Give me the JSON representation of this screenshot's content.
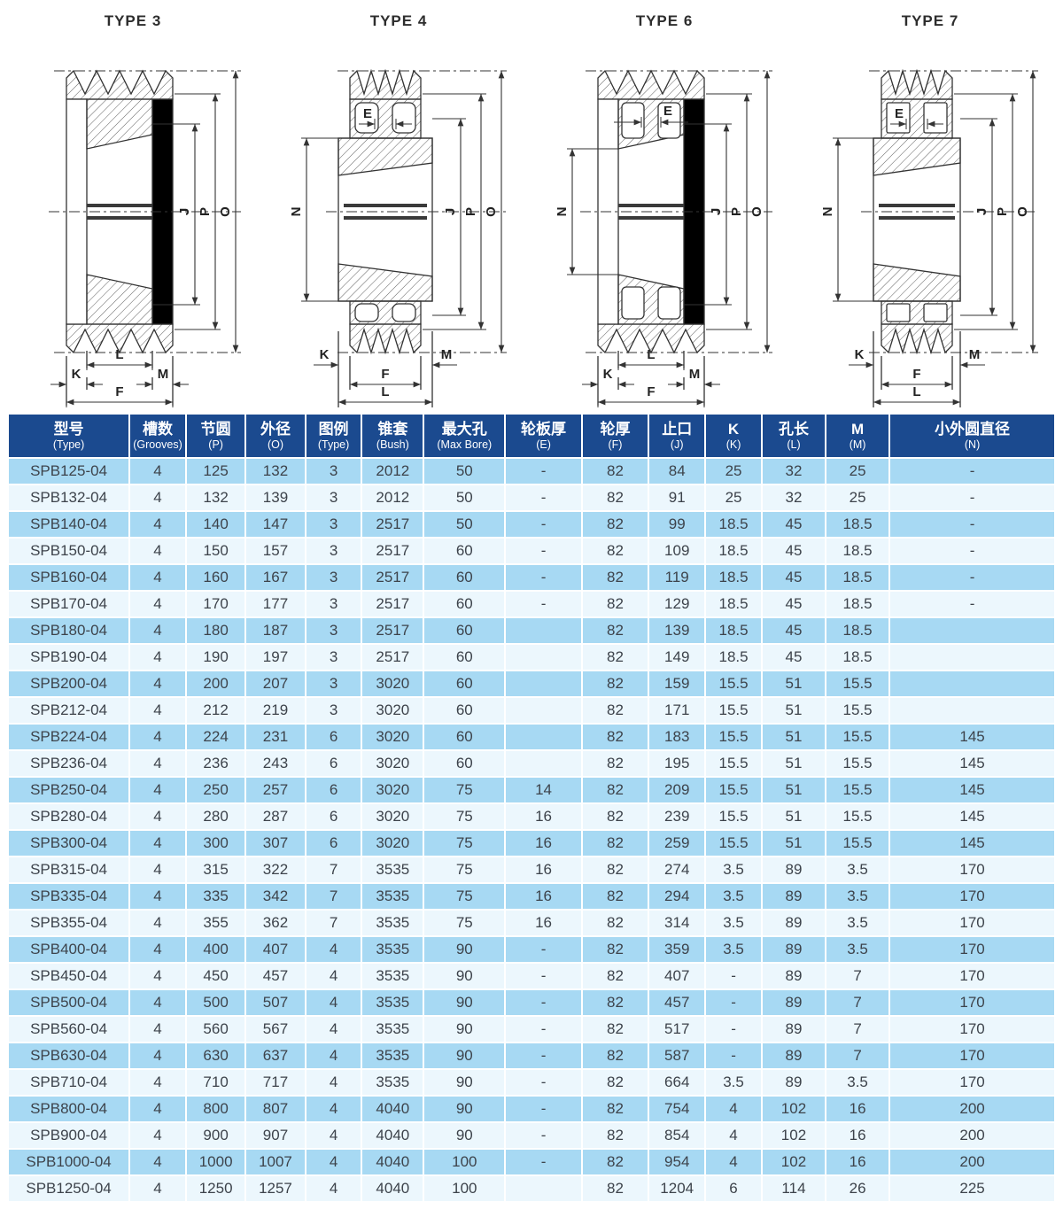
{
  "diagrams": [
    {
      "id": "type3",
      "title": "TYPE 3",
      "variant": "solid",
      "labels": {
        "j": "J",
        "p": "P",
        "o": "O",
        "k": "K",
        "l": "L",
        "m": "M",
        "f": "F"
      }
    },
    {
      "id": "type4",
      "title": "TYPE 4",
      "variant": "hub",
      "labels": {
        "e": "E",
        "n": "N",
        "j": "J",
        "p": "P",
        "o": "O",
        "k": "K",
        "l": "L",
        "m": "M",
        "f": "F"
      }
    },
    {
      "id": "type6",
      "title": "TYPE 6",
      "variant": "web",
      "labels": {
        "e": "E",
        "n": "N",
        "j": "J",
        "p": "P",
        "o": "O",
        "k": "K",
        "l": "L",
        "m": "M",
        "f": "F"
      }
    },
    {
      "id": "type7",
      "title": "TYPE 7",
      "variant": "hub",
      "labels": {
        "e": "E",
        "n": "N",
        "j": "J",
        "p": "P",
        "o": "O",
        "k": "K",
        "l": "L",
        "m": "M",
        "f": "F"
      }
    }
  ],
  "table": {
    "columns": [
      {
        "zh": "型号",
        "en": "(Type)"
      },
      {
        "zh": "槽数",
        "en": "(Grooves)"
      },
      {
        "zh": "节圆",
        "en": "(P)"
      },
      {
        "zh": "外径",
        "en": "(O)"
      },
      {
        "zh": "图例",
        "en": "(Type)"
      },
      {
        "zh": "锥套",
        "en": "(Bush)"
      },
      {
        "zh": "最大孔",
        "en": "(Max Bore)"
      },
      {
        "zh": "轮板厚",
        "en": "(E)"
      },
      {
        "zh": "轮厚",
        "en": "(F)"
      },
      {
        "zh": "止口",
        "en": "(J)"
      },
      {
        "zh": "K",
        "en": "(K)"
      },
      {
        "zh": "孔长",
        "en": "(L)"
      },
      {
        "zh": "M",
        "en": "(M)"
      },
      {
        "zh": "小外圆直径",
        "en": "(N)"
      }
    ],
    "rows": [
      [
        "SPB125-04",
        "4",
        "125",
        "132",
        "3",
        "2012",
        "50",
        "-",
        "82",
        "84",
        "25",
        "32",
        "25",
        "-"
      ],
      [
        "SPB132-04",
        "4",
        "132",
        "139",
        "3",
        "2012",
        "50",
        "-",
        "82",
        "91",
        "25",
        "32",
        "25",
        "-"
      ],
      [
        "SPB140-04",
        "4",
        "140",
        "147",
        "3",
        "2517",
        "50",
        "-",
        "82",
        "99",
        "18.5",
        "45",
        "18.5",
        "-"
      ],
      [
        "SPB150-04",
        "4",
        "150",
        "157",
        "3",
        "2517",
        "60",
        "-",
        "82",
        "109",
        "18.5",
        "45",
        "18.5",
        "-"
      ],
      [
        "SPB160-04",
        "4",
        "160",
        "167",
        "3",
        "2517",
        "60",
        "-",
        "82",
        "119",
        "18.5",
        "45",
        "18.5",
        "-"
      ],
      [
        "SPB170-04",
        "4",
        "170",
        "177",
        "3",
        "2517",
        "60",
        "-",
        "82",
        "129",
        "18.5",
        "45",
        "18.5",
        "-"
      ],
      [
        "SPB180-04",
        "4",
        "180",
        "187",
        "3",
        "2517",
        "60",
        "",
        "82",
        "139",
        "18.5",
        "45",
        "18.5",
        ""
      ],
      [
        "SPB190-04",
        "4",
        "190",
        "197",
        "3",
        "2517",
        "60",
        "",
        "82",
        "149",
        "18.5",
        "45",
        "18.5",
        ""
      ],
      [
        "SPB200-04",
        "4",
        "200",
        "207",
        "3",
        "3020",
        "60",
        "",
        "82",
        "159",
        "15.5",
        "51",
        "15.5",
        ""
      ],
      [
        "SPB212-04",
        "4",
        "212",
        "219",
        "3",
        "3020",
        "60",
        "",
        "82",
        "171",
        "15.5",
        "51",
        "15.5",
        ""
      ],
      [
        "SPB224-04",
        "4",
        "224",
        "231",
        "6",
        "3020",
        "60",
        "",
        "82",
        "183",
        "15.5",
        "51",
        "15.5",
        "145"
      ],
      [
        "SPB236-04",
        "4",
        "236",
        "243",
        "6",
        "3020",
        "60",
        "",
        "82",
        "195",
        "15.5",
        "51",
        "15.5",
        "145"
      ],
      [
        "SPB250-04",
        "4",
        "250",
        "257",
        "6",
        "3020",
        "75",
        "14",
        "82",
        "209",
        "15.5",
        "51",
        "15.5",
        "145"
      ],
      [
        "SPB280-04",
        "4",
        "280",
        "287",
        "6",
        "3020",
        "75",
        "16",
        "82",
        "239",
        "15.5",
        "51",
        "15.5",
        "145"
      ],
      [
        "SPB300-04",
        "4",
        "300",
        "307",
        "6",
        "3020",
        "75",
        "16",
        "82",
        "259",
        "15.5",
        "51",
        "15.5",
        "145"
      ],
      [
        "SPB315-04",
        "4",
        "315",
        "322",
        "7",
        "3535",
        "75",
        "16",
        "82",
        "274",
        "3.5",
        "89",
        "3.5",
        "170"
      ],
      [
        "SPB335-04",
        "4",
        "335",
        "342",
        "7",
        "3535",
        "75",
        "16",
        "82",
        "294",
        "3.5",
        "89",
        "3.5",
        "170"
      ],
      [
        "SPB355-04",
        "4",
        "355",
        "362",
        "7",
        "3535",
        "75",
        "16",
        "82",
        "314",
        "3.5",
        "89",
        "3.5",
        "170"
      ],
      [
        "SPB400-04",
        "4",
        "400",
        "407",
        "4",
        "3535",
        "90",
        "-",
        "82",
        "359",
        "3.5",
        "89",
        "3.5",
        "170"
      ],
      [
        "SPB450-04",
        "4",
        "450",
        "457",
        "4",
        "3535",
        "90",
        "-",
        "82",
        "407",
        "-",
        "89",
        "7",
        "170"
      ],
      [
        "SPB500-04",
        "4",
        "500",
        "507",
        "4",
        "3535",
        "90",
        "-",
        "82",
        "457",
        "-",
        "89",
        "7",
        "170"
      ],
      [
        "SPB560-04",
        "4",
        "560",
        "567",
        "4",
        "3535",
        "90",
        "-",
        "82",
        "517",
        "-",
        "89",
        "7",
        "170"
      ],
      [
        "SPB630-04",
        "4",
        "630",
        "637",
        "4",
        "3535",
        "90",
        "-",
        "82",
        "587",
        "-",
        "89",
        "7",
        "170"
      ],
      [
        "SPB710-04",
        "4",
        "710",
        "717",
        "4",
        "3535",
        "90",
        "-",
        "82",
        "664",
        "3.5",
        "89",
        "3.5",
        "170"
      ],
      [
        "SPB800-04",
        "4",
        "800",
        "807",
        "4",
        "4040",
        "90",
        "-",
        "82",
        "754",
        "4",
        "102",
        "16",
        "200"
      ],
      [
        "SPB900-04",
        "4",
        "900",
        "907",
        "4",
        "4040",
        "90",
        "-",
        "82",
        "854",
        "4",
        "102",
        "16",
        "200"
      ],
      [
        "SPB1000-04",
        "4",
        "1000",
        "1007",
        "4",
        "4040",
        "100",
        "-",
        "82",
        "954",
        "4",
        "102",
        "16",
        "200"
      ],
      [
        "SPB1250-04",
        "4",
        "1250",
        "1257",
        "4",
        "4040",
        "100",
        "",
        "82",
        "1204",
        "6",
        "114",
        "26",
        "225"
      ]
    ],
    "col_widths": [
      "11.6%",
      "5.4%",
      "5.7%",
      "5.7%",
      "5.4%",
      "5.9%",
      "7.8%",
      "7.3%",
      "6.4%",
      "5.4%",
      "5.4%",
      "6.1%",
      "6.1%",
      "15.8%"
    ]
  },
  "colors": {
    "header_bg": "#1b4a8f",
    "row_odd": "#a7d9f3",
    "row_even": "#ecf7fd",
    "cell_text": "#3d434b",
    "line": "#333333"
  }
}
